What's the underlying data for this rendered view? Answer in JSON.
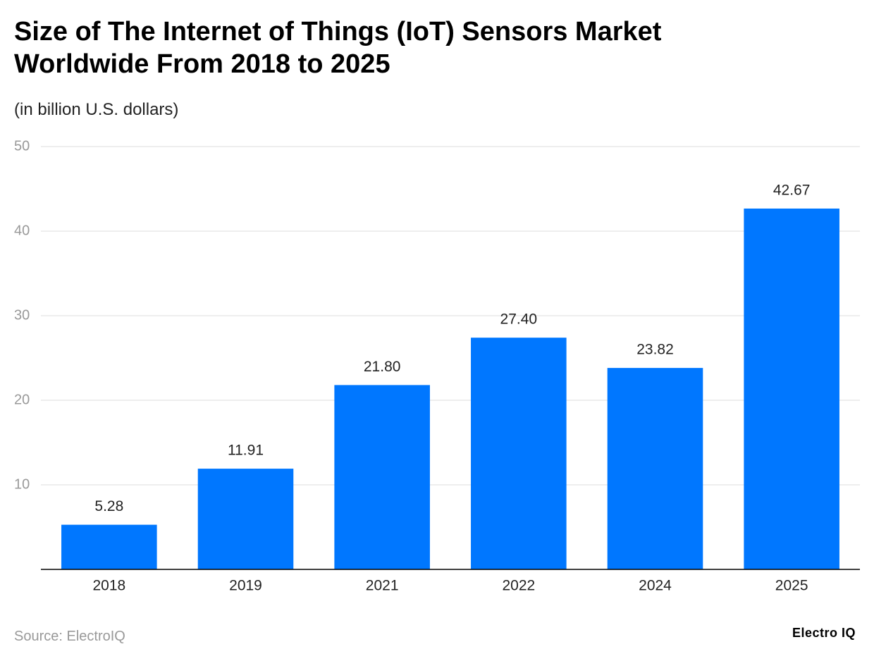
{
  "chart_data": {
    "type": "bar",
    "title": "Size of The Internet of Things (IoT) Sensors Market Worldwide From 2018 to 2025",
    "subtitle": "(in billion U.S. dollars)",
    "source": "Source: ElectroIQ",
    "brand": "Electro IQ",
    "categories": [
      "2018",
      "2019",
      "2021",
      "2022",
      "2024",
      "2025"
    ],
    "values": [
      5.28,
      11.91,
      21.8,
      27.4,
      23.82,
      42.67
    ],
    "value_labels": [
      "5.28",
      "11.91",
      "21.80",
      "27.40",
      "23.82",
      "42.67"
    ],
    "color": "#0077ff",
    "ylim": [
      0,
      50
    ],
    "yticks": [
      10,
      20,
      30,
      40,
      50
    ],
    "grid": true
  }
}
